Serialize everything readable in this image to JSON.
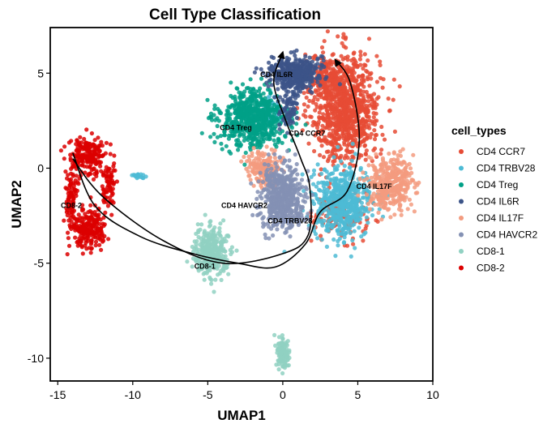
{
  "chart_data": {
    "type": "scatter",
    "title": "Cell Type Classification",
    "xlabel": "UMAP1",
    "ylabel": "UMAP2",
    "xlim": [
      -15.5,
      10
    ],
    "ylim": [
      -11.2,
      7.4
    ],
    "xticks": [
      -15,
      -10,
      -5,
      0,
      5,
      10
    ],
    "yticks": [
      -10,
      -5,
      0,
      5
    ],
    "legend": {
      "title": "cell_types",
      "placement": "right"
    },
    "grid": false,
    "series": [
      {
        "name": "CD4 CCR7",
        "color": "#E64B35",
        "label": "CD4 CCR7",
        "label_at": [
          0.4,
          1.7
        ],
        "clusters": [
          {
            "cx": 4.2,
            "cy": 3.2,
            "sx": 1.8,
            "sy": 2.3,
            "n": 950
          },
          {
            "cx": 3.8,
            "cy": -2.4,
            "sx": 1.4,
            "sy": 1.0,
            "n": 160
          },
          {
            "cx": 2.8,
            "cy": 4.8,
            "sx": 0.9,
            "sy": 0.8,
            "n": 120
          }
        ]
      },
      {
        "name": "CD4 TRBV28",
        "color": "#4DBBD5",
        "label": "CD4 TRBV28",
        "label_at": [
          -1.0,
          -2.9
        ],
        "clusters": [
          {
            "cx": 4.0,
            "cy": -1.8,
            "sx": 1.6,
            "sy": 1.5,
            "n": 560
          },
          {
            "cx": -9.7,
            "cy": -0.4,
            "sx": 0.4,
            "sy": 0.12,
            "n": 20
          },
          {
            "cx": -0.6,
            "cy": 3.0,
            "sx": 0.7,
            "sy": 0.8,
            "n": 40
          }
        ]
      },
      {
        "name": "CD4 Treg",
        "color": "#00A087",
        "label": "CD4 Treg",
        "label_at": [
          -4.2,
          2.0
        ],
        "clusters": [
          {
            "cx": -2.0,
            "cy": 2.6,
            "sx": 1.8,
            "sy": 1.2,
            "n": 650
          }
        ]
      },
      {
        "name": "CD4 IL6R",
        "color": "#3C5488",
        "label": "CD4 IL6R",
        "label_at": [
          -1.5,
          4.8
        ],
        "clusters": [
          {
            "cx": 0.8,
            "cy": 5.0,
            "sx": 1.3,
            "sy": 0.7,
            "n": 420
          },
          {
            "cx": 0.4,
            "cy": 3.2,
            "sx": 0.5,
            "sy": 1.0,
            "n": 80
          }
        ]
      },
      {
        "name": "CD4 IL17F",
        "color": "#F39B7F",
        "label": "CD4 IL17F",
        "label_at": [
          4.9,
          -1.1
        ],
        "clusters": [
          {
            "cx": 7.2,
            "cy": -0.8,
            "sx": 1.2,
            "sy": 1.1,
            "n": 380
          },
          {
            "cx": -1.2,
            "cy": 0.0,
            "sx": 0.9,
            "sy": 0.7,
            "n": 180
          }
        ]
      },
      {
        "name": "CD4 HAVCR2",
        "color": "#8491B4",
        "label": "CD4 HAVCR2",
        "label_at": [
          -4.1,
          -2.1
        ],
        "clusters": [
          {
            "cx": 0.0,
            "cy": -1.5,
            "sx": 1.2,
            "sy": 1.3,
            "n": 540
          }
        ]
      },
      {
        "name": "CD8-1",
        "color": "#91D1C2",
        "label": "CD8-1",
        "label_at": [
          -5.9,
          -5.3
        ],
        "clusters": [
          {
            "cx": -4.8,
            "cy": -4.4,
            "sx": 0.9,
            "sy": 1.0,
            "n": 320
          },
          {
            "cx": 0.0,
            "cy": -9.7,
            "sx": 0.3,
            "sy": 0.6,
            "n": 140
          }
        ]
      },
      {
        "name": "CD8-2",
        "color": "#DC0000",
        "label": "CD8-2",
        "label_at": [
          -14.8,
          -2.1
        ],
        "clusters": [
          {
            "cx": -13.0,
            "cy": 0.6,
            "sx": 1.0,
            "sy": 0.8,
            "n": 200
          },
          {
            "cx": -12.9,
            "cy": -3.2,
            "sx": 0.9,
            "sy": 0.9,
            "n": 220
          },
          {
            "cx": -14.1,
            "cy": -1.5,
            "sx": 0.3,
            "sy": 1.2,
            "n": 90
          },
          {
            "cx": -11.6,
            "cy": -1.0,
            "sx": 0.35,
            "sy": 1.0,
            "n": 70
          }
        ]
      }
    ],
    "trajectories": [
      {
        "points": [
          [
            -14.0,
            0.5
          ],
          [
            -12.0,
            -1.5
          ],
          [
            -8.0,
            -3.8
          ],
          [
            -4.0,
            -5.0
          ],
          [
            0.0,
            -4.5
          ],
          [
            1.7,
            -3.5
          ],
          [
            1.8,
            -1.0
          ],
          [
            1.2,
            0.5
          ],
          [
            0.2,
            2.5
          ],
          [
            -0.6,
            4.5
          ],
          [
            0.0,
            6.1
          ]
        ]
      },
      {
        "points": [
          [
            -14.0,
            0.8
          ],
          [
            -12.5,
            -2.0
          ],
          [
            -9.5,
            -3.6
          ],
          [
            -6.0,
            -4.5
          ],
          [
            -3.0,
            -5.0
          ],
          [
            -0.5,
            -5.2
          ],
          [
            1.5,
            -4.0
          ],
          [
            2.5,
            -2.3
          ],
          [
            4.3,
            -1.2
          ],
          [
            5.1,
            1.5
          ],
          [
            4.5,
            4.5
          ],
          [
            3.5,
            5.7
          ]
        ]
      }
    ]
  }
}
